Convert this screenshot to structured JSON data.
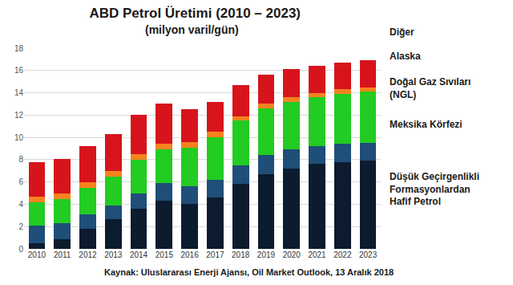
{
  "chart_data": {
    "type": "bar",
    "title": "ABD Petrol Üretimi (2010 – 2023)",
    "subtitle": "(milyon varil/gün)",
    "annotations": [
      "Kaynak: Uluslararası Enerji Ajansı, Oil Market Outlook, 13 Aralık 2018"
    ],
    "categories": [
      "2010",
      "2011",
      "2012",
      "2013",
      "2014",
      "2015",
      "2016",
      "2017",
      "2018",
      "2019",
      "2020",
      "2021",
      "2022",
      "2023"
    ],
    "series": [
      {
        "name": "Düşük Geçirgenlikli Formasyonlardan Hafif Petrol",
        "color": "#0d1b2e",
        "values": [
          0.5,
          0.9,
          1.8,
          2.7,
          3.6,
          4.3,
          4.0,
          4.6,
          5.8,
          6.7,
          7.2,
          7.6,
          7.8,
          7.9
        ]
      },
      {
        "name": "Meksika Körfezi",
        "color": "#1f4e79",
        "values": [
          1.6,
          1.4,
          1.3,
          1.2,
          1.4,
          1.6,
          1.6,
          1.6,
          1.7,
          1.7,
          1.7,
          1.6,
          1.6,
          1.6
        ]
      },
      {
        "name": "Doğal Gaz Sıvıları (NGL)",
        "color": "#22cc22",
        "values": [
          2.1,
          2.2,
          2.4,
          2.6,
          3.0,
          3.0,
          3.5,
          3.8,
          4.0,
          4.2,
          4.3,
          4.4,
          4.5,
          4.6
        ]
      },
      {
        "name": "Alaska",
        "color": "#f5821f",
        "values": [
          0.5,
          0.5,
          0.5,
          0.5,
          0.5,
          0.5,
          0.5,
          0.5,
          0.4,
          0.4,
          0.4,
          0.4,
          0.4,
          0.4
        ]
      },
      {
        "name": "Diğer",
        "color": "#d7141c",
        "values": [
          3.1,
          3.1,
          3.2,
          3.3,
          3.5,
          3.6,
          2.9,
          2.7,
          2.8,
          2.6,
          2.5,
          2.4,
          2.4,
          2.4
        ]
      }
    ],
    "ylim": [
      0,
      18
    ],
    "yticks": [
      0,
      2,
      4,
      6,
      8,
      10,
      12,
      14,
      16,
      18
    ],
    "grid": true,
    "stacked": true,
    "legend": "right"
  }
}
